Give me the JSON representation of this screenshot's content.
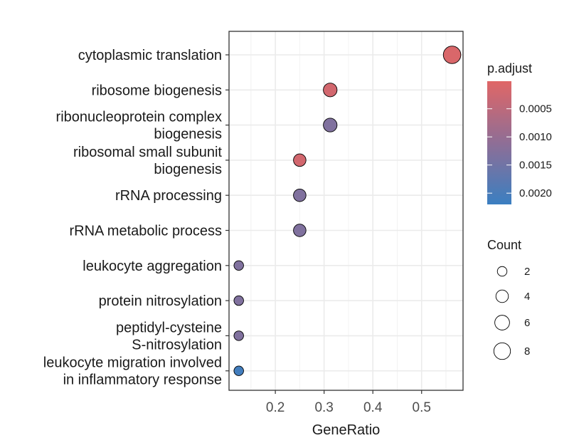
{
  "chart_data": {
    "type": "scatter",
    "xlabel": "GeneRatio",
    "xlim": [
      0.105,
      0.585
    ],
    "x_ticks": [
      0.2,
      0.3,
      0.4,
      0.5
    ],
    "x_tick_labels": [
      "0.2",
      "0.3",
      "0.4",
      "0.5"
    ],
    "grid": true,
    "points": [
      {
        "label": [
          "cytoplasmic translation"
        ],
        "x": 0.5625,
        "count": 9,
        "p_adjust": 0.0001
      },
      {
        "label": [
          "ribosome biogenesis"
        ],
        "x": 0.3125,
        "count": 5,
        "p_adjust": 0.0002
      },
      {
        "label": [
          "ribonucleoprotein complex",
          "biogenesis"
        ],
        "x": 0.3125,
        "count": 5,
        "p_adjust": 0.0013
      },
      {
        "label": [
          "ribosomal small subunit",
          "biogenesis"
        ],
        "x": 0.25,
        "count": 4,
        "p_adjust": 0.0002
      },
      {
        "label": [
          "rRNA processing"
        ],
        "x": 0.25,
        "count": 4,
        "p_adjust": 0.0013
      },
      {
        "label": [
          "rRNA metabolic process"
        ],
        "x": 0.25,
        "count": 4,
        "p_adjust": 0.0013
      },
      {
        "label": [
          "leukocyte aggregation"
        ],
        "x": 0.125,
        "count": 2,
        "p_adjust": 0.0013
      },
      {
        "label": [
          "protein nitrosylation"
        ],
        "x": 0.125,
        "count": 2,
        "p_adjust": 0.0013
      },
      {
        "label": [
          "peptidyl-cysteine",
          "S-nitrosylation"
        ],
        "x": 0.125,
        "count": 2,
        "p_adjust": 0.0013
      },
      {
        "label": [
          "leukocyte migration involved",
          "in inflammatory response"
        ],
        "x": 0.125,
        "count": 2,
        "p_adjust": 0.0021
      }
    ],
    "color_legend": {
      "title": "p.adjust",
      "range": [
        1e-05,
        0.0022
      ],
      "ticks": [
        0.0005,
        0.001,
        0.0015,
        0.002
      ],
      "tick_labels": [
        "0.0005",
        "0.0010",
        "0.0015",
        "0.0020"
      ],
      "low_color": "#e06666",
      "high_color": "#3a7fc1"
    },
    "size_legend": {
      "title": "Count",
      "values": [
        2,
        4,
        6,
        8
      ],
      "labels": [
        "2",
        "4",
        "6",
        "8"
      ]
    },
    "legend_position": "right"
  }
}
